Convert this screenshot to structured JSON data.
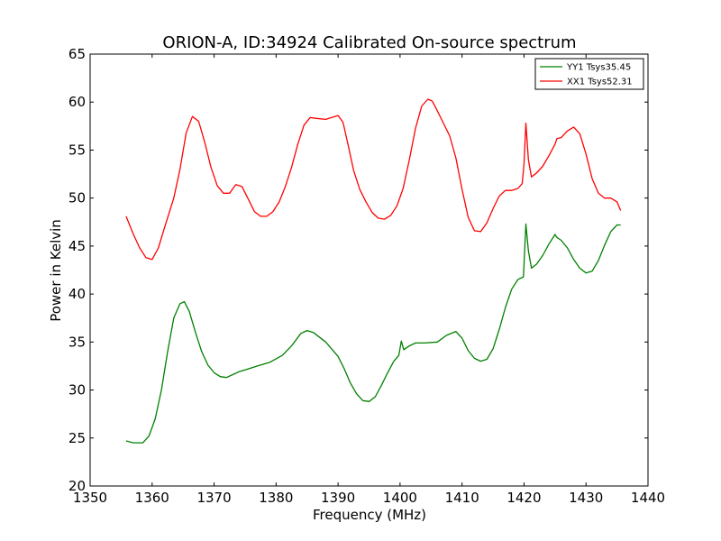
{
  "chart_data": {
    "type": "line",
    "title": "ORION-A, ID:34924 Calibrated On-source spectrum",
    "xlabel": "Frequency (MHz)",
    "ylabel": "Power in Kelvin",
    "xlim": [
      1350,
      1440
    ],
    "ylim": [
      20,
      65
    ],
    "xticks": [
      1350,
      1360,
      1370,
      1380,
      1390,
      1400,
      1410,
      1420,
      1430,
      1440
    ],
    "yticks": [
      20,
      25,
      30,
      35,
      40,
      45,
      50,
      55,
      60,
      65
    ],
    "grid": false,
    "legend_position": "top-right",
    "series": [
      {
        "name": "YY1 Tsys35.45",
        "color": "#008000",
        "x": [
          1355.8,
          1357.0,
          1358.5,
          1359.5,
          1360.5,
          1361.5,
          1362.5,
          1363.5,
          1364.5,
          1365.2,
          1366.0,
          1367.0,
          1368.0,
          1369.0,
          1370.0,
          1371.0,
          1372.0,
          1373.0,
          1374.0,
          1375.0,
          1377.0,
          1379.0,
          1381.0,
          1382.5,
          1384.0,
          1385.0,
          1386.0,
          1388.0,
          1390.0,
          1391.0,
          1392.0,
          1393.0,
          1394.0,
          1395.0,
          1396.0,
          1397.0,
          1398.0,
          1399.0,
          1399.8,
          1400.2,
          1400.6,
          1401.5,
          1402.5,
          1404.0,
          1406.0,
          1407.5,
          1409.0,
          1410.0,
          1411.0,
          1412.0,
          1413.0,
          1414.0,
          1415.0,
          1416.0,
          1417.0,
          1418.0,
          1419.0,
          1419.9,
          1420.3,
          1420.7,
          1421.2,
          1422.0,
          1423.0,
          1424.0,
          1425.0,
          1425.3,
          1426.0,
          1427.0,
          1428.0,
          1429.0,
          1430.0,
          1431.0,
          1432.0,
          1433.0,
          1434.0,
          1435.0,
          1435.6
        ],
        "values": [
          24.7,
          24.5,
          24.5,
          25.2,
          27.0,
          30.0,
          34.0,
          37.5,
          39.0,
          39.2,
          38.2,
          36.0,
          34.0,
          32.6,
          31.8,
          31.4,
          31.3,
          31.6,
          31.9,
          32.1,
          32.5,
          32.9,
          33.6,
          34.6,
          35.9,
          36.2,
          36.0,
          35.0,
          33.5,
          32.2,
          30.7,
          29.6,
          28.9,
          28.8,
          29.3,
          30.5,
          31.8,
          33.0,
          33.6,
          35.1,
          34.2,
          34.6,
          34.9,
          34.9,
          35.0,
          35.7,
          36.1,
          35.4,
          34.1,
          33.3,
          33.0,
          33.2,
          34.3,
          36.3,
          38.6,
          40.5,
          41.5,
          41.8,
          47.3,
          44.5,
          42.7,
          43.1,
          44.0,
          45.2,
          46.2,
          45.9,
          45.6,
          44.8,
          43.6,
          42.7,
          42.2,
          42.4,
          43.5,
          45.1,
          46.5,
          47.2,
          47.2
        ]
      },
      {
        "name": "XX1 Tsys52.31",
        "color": "#ff0000",
        "x": [
          1355.8,
          1357.0,
          1358.0,
          1359.0,
          1360.0,
          1361.0,
          1362.0,
          1363.5,
          1364.5,
          1365.5,
          1366.5,
          1367.5,
          1368.5,
          1369.5,
          1370.5,
          1371.5,
          1372.5,
          1373.5,
          1374.5,
          1375.5,
          1376.5,
          1377.5,
          1378.5,
          1379.5,
          1380.5,
          1381.5,
          1382.5,
          1383.5,
          1384.5,
          1385.5,
          1386.5,
          1388.0,
          1389.0,
          1390.0,
          1390.8,
          1391.5,
          1392.5,
          1393.5,
          1394.5,
          1395.5,
          1396.5,
          1397.5,
          1398.5,
          1399.5,
          1400.5,
          1401.5,
          1402.5,
          1403.5,
          1404.5,
          1405.2,
          1406.0,
          1407.0,
          1408.0,
          1409.0,
          1410.0,
          1411.0,
          1412.0,
          1413.0,
          1414.0,
          1415.0,
          1416.0,
          1417.0,
          1418.0,
          1419.0,
          1419.7,
          1420.0,
          1420.3,
          1420.7,
          1421.2,
          1422.0,
          1423.0,
          1424.0,
          1425.0,
          1425.3,
          1426.0,
          1427.0,
          1428.0,
          1429.0,
          1430.0,
          1431.0,
          1432.0,
          1433.0,
          1434.0,
          1435.0,
          1435.6
        ],
        "values": [
          48.1,
          46.2,
          44.8,
          43.8,
          43.6,
          44.8,
          46.9,
          50.0,
          53.0,
          56.8,
          58.5,
          58.0,
          55.8,
          53.2,
          51.3,
          50.5,
          50.5,
          51.4,
          51.2,
          49.9,
          48.6,
          48.1,
          48.1,
          48.6,
          49.6,
          51.2,
          53.2,
          55.6,
          57.6,
          58.4,
          58.3,
          58.2,
          58.4,
          58.6,
          57.9,
          55.9,
          52.9,
          50.9,
          49.6,
          48.5,
          47.9,
          47.8,
          48.2,
          49.2,
          51.0,
          54.0,
          57.3,
          59.6,
          60.3,
          60.1,
          59.1,
          57.8,
          56.5,
          54.2,
          50.9,
          48.0,
          46.6,
          46.5,
          47.4,
          48.9,
          50.2,
          50.8,
          50.8,
          51.0,
          51.5,
          53.5,
          57.8,
          54.0,
          52.2,
          52.6,
          53.3,
          54.4,
          55.6,
          56.2,
          56.3,
          57.0,
          57.4,
          56.7,
          54.6,
          52.0,
          50.5,
          50.0,
          50.0,
          49.6,
          48.7
        ]
      }
    ]
  }
}
